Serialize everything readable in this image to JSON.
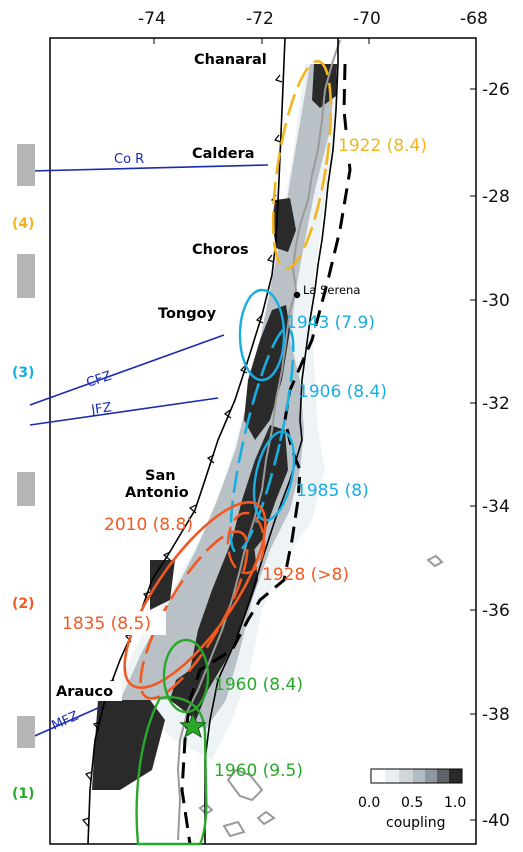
{
  "axes": {
    "longitude_ticks": [
      "-74",
      "-72",
      "-70",
      "-68"
    ],
    "latitude_ticks": [
      "-26",
      "-28",
      "-30",
      "-32",
      "-34",
      "-36",
      "-38",
      "-40"
    ]
  },
  "places": {
    "chanaral": "Chanaral",
    "caldera": "Caldera",
    "choros": "Choros",
    "la_serena": "La Serena",
    "tongoy": "Tongoy",
    "san": "San",
    "antonio": "Antonio",
    "arauco": "Arauco"
  },
  "fracture_zones": {
    "cor": "Co R",
    "cfz": "CFZ",
    "jfz": "JFZ",
    "mfz": "MFZ"
  },
  "earthquakes": {
    "eq1922": "1922 (8.4)",
    "eq1943": "1943 (7.9)",
    "eq1906": "1906 (8.4)",
    "eq1985": "1985 (8)",
    "eq2010": "2010 (8.8)",
    "eq1928": "1928 (>8)",
    "eq1835": "1835 (8.5)",
    "eq1960a": "1960 (8.4)",
    "eq1960b": "1960 (9.5)"
  },
  "segments": {
    "s4": "(4)",
    "s3": "(3)",
    "s2": "(2)",
    "s1": "(1)"
  },
  "legend": {
    "ticks": [
      "0.0",
      "0.5",
      "1.0"
    ],
    "label": "coupling"
  },
  "colors": {
    "yellow": "#f2b61c",
    "cyan": "#19aee0",
    "orange": "#f05a22",
    "green": "#2aa82a",
    "blue": "#1a2bb0",
    "coupling_high": "#2a2a2a"
  }
}
